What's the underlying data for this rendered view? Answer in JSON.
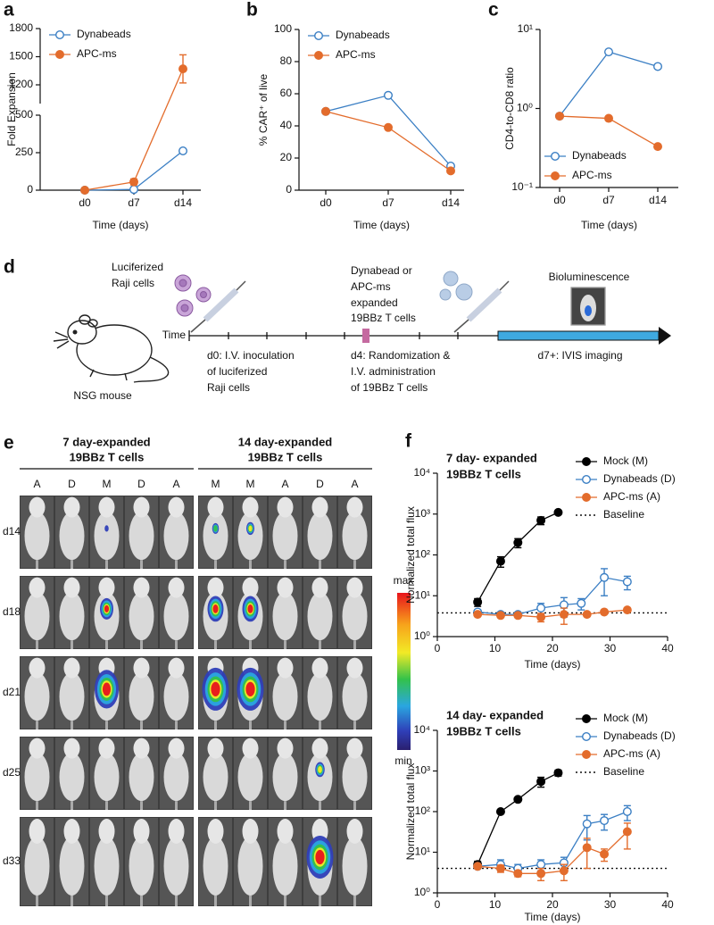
{
  "chart_data": [
    {
      "type": "line",
      "panel": "a",
      "xlabel": "Time (days)",
      "ylabel": "Fold Expansion",
      "categories": [
        "d0",
        "d7",
        "d14"
      ],
      "series": [
        {
          "name": "Dynabeads",
          "color": "#3b7fc4",
          "marker": "open",
          "values": [
            0,
            5,
            262
          ],
          "errors": [
            null,
            null,
            12
          ]
        },
        {
          "name": "APC-ms",
          "color": "#e36c2c",
          "marker": "filled",
          "values": [
            0,
            55,
            1370
          ],
          "errors": [
            null,
            20,
            150
          ]
        }
      ],
      "ylim": [
        0,
        1800
      ],
      "ybreak": [
        500,
        1000
      ],
      "yticks": [
        0,
        250,
        500,
        1200,
        1500,
        1800
      ],
      "legend": "upper left"
    },
    {
      "type": "line",
      "panel": "b",
      "xlabel": "Time (days)",
      "ylabel": "% CAR⁺ of live",
      "categories": [
        "d0",
        "d7",
        "d14"
      ],
      "series": [
        {
          "name": "Dynabeads",
          "color": "#3b7fc4",
          "marker": "open",
          "values": [
            49,
            59,
            15
          ]
        },
        {
          "name": "APC-ms",
          "color": "#e36c2c",
          "marker": "filled",
          "values": [
            49,
            39,
            12
          ]
        }
      ],
      "ylim": [
        0,
        100
      ],
      "yticks": [
        0,
        20,
        40,
        60,
        80,
        100
      ],
      "legend": "upper left"
    },
    {
      "type": "line",
      "panel": "c",
      "xlabel": "Time (days)",
      "ylabel": "CD4-to-CD8 ratio",
      "categories": [
        "d0",
        "d7",
        "d14"
      ],
      "series": [
        {
          "name": "Dynabeads",
          "color": "#3b7fc4",
          "marker": "open",
          "values": [
            0.8,
            5.2,
            3.4
          ]
        },
        {
          "name": "APC-ms",
          "color": "#e36c2c",
          "marker": "filled",
          "values": [
            0.8,
            0.75,
            0.33
          ]
        }
      ],
      "log_y": true,
      "ylim": [
        0.1,
        10
      ],
      "yticks": [
        {
          "value": 0.1,
          "label": "10⁻¹"
        },
        {
          "value": 1,
          "label": "10⁰"
        },
        {
          "value": 10,
          "label": "10¹"
        }
      ],
      "legend": "lower left"
    },
    {
      "type": "line",
      "panel": "f",
      "title": [
        "7 day- expanded",
        "19BBz T cells"
      ],
      "xlabel": "Time (days)",
      "ylabel": "Normalized total flux",
      "series": [
        {
          "name": "Mock (M)",
          "color": "#000000",
          "marker": "filled",
          "x": [
            7,
            11,
            14,
            18,
            21
          ],
          "values": [
            7,
            70,
            200,
            700,
            1100
          ],
          "errors": [
            1.5,
            20,
            50,
            150,
            100
          ]
        },
        {
          "name": "Dynabeads (D)",
          "color": "#3b7fc4",
          "marker": "open",
          "x": [
            7,
            11,
            14,
            18,
            22,
            25,
            29,
            33
          ],
          "values": [
            4,
            3.5,
            3.5,
            5,
            6,
            6.5,
            28,
            22
          ],
          "errors": [
            0.5,
            0.3,
            0.4,
            1.5,
            3,
            2,
            18,
            8
          ]
        },
        {
          "name": "APC-ms (A)",
          "color": "#e36c2c",
          "marker": "filled",
          "x": [
            7,
            11,
            14,
            18,
            22,
            26,
            29,
            33
          ],
          "values": [
            3.5,
            3.3,
            3.3,
            3,
            3.5,
            3.5,
            4,
            4.5
          ],
          "errors": [
            0.3,
            0.3,
            0.3,
            0.7,
            1.5,
            0.3,
            0.4,
            0.5
          ]
        }
      ],
      "hlines": [
        {
          "name": "Baseline",
          "value": 3.8,
          "style": "dotted"
        }
      ],
      "xlim": [
        0,
        40
      ],
      "xticks": [
        0,
        10,
        20,
        30,
        40
      ],
      "log_y": true,
      "ylim": [
        1,
        10000
      ],
      "yticks": [
        {
          "value": 1,
          "label": "10⁰"
        },
        {
          "value": 10,
          "label": "10¹"
        },
        {
          "value": 100,
          "label": "10²"
        },
        {
          "value": 1000,
          "label": "10³"
        },
        {
          "value": 10000,
          "label": "10⁴"
        }
      ],
      "legend": "upper right"
    },
    {
      "type": "line",
      "title": [
        "14 day- expanded",
        "19BBz T cells"
      ],
      "xlabel": "Time (days)",
      "ylabel": "Normalized total flux",
      "series": [
        {
          "name": "Mock (M)",
          "color": "#000000",
          "marker": "filled",
          "x": [
            7,
            11,
            14,
            18,
            21
          ],
          "values": [
            5,
            100,
            200,
            550,
            900
          ],
          "errors": [
            1,
            10,
            20,
            150,
            150
          ]
        },
        {
          "name": "Dynabeads (D)",
          "color": "#3b7fc4",
          "marker": "open",
          "x": [
            7,
            11,
            14,
            18,
            22,
            26,
            29,
            33
          ],
          "values": [
            4.5,
            5,
            4,
            5,
            5.5,
            50,
            60,
            100
          ],
          "errors": [
            0.5,
            1.5,
            1,
            1.5,
            2,
            30,
            25,
            40
          ]
        },
        {
          "name": "APC-ms (A)",
          "color": "#e36c2c",
          "marker": "filled",
          "x": [
            7,
            11,
            14,
            18,
            22,
            26,
            29,
            33
          ],
          "values": [
            4.5,
            4,
            3,
            3,
            3.5,
            13,
            9,
            32
          ],
          "errors": [
            0.5,
            0.8,
            0.5,
            1,
            1.5,
            9,
            3,
            20
          ]
        }
      ],
      "hlines": [
        {
          "name": "Baseline",
          "value": 4,
          "style": "dotted"
        }
      ],
      "xlim": [
        0,
        40
      ],
      "xticks": [
        0,
        10,
        20,
        30,
        40
      ],
      "log_y": true,
      "ylim": [
        1,
        10000
      ],
      "yticks": [
        {
          "value": 1,
          "label": "10⁰"
        },
        {
          "value": 10,
          "label": "10¹"
        },
        {
          "value": 100,
          "label": "10²"
        },
        {
          "value": 1000,
          "label": "10³"
        },
        {
          "value": 10000,
          "label": "10⁴"
        }
      ],
      "legend": "upper right"
    }
  ],
  "diagram": {
    "panel": "d",
    "cells_label": [
      "Luciferized",
      "Raji cells"
    ],
    "tcells_label": [
      "Dynabead or",
      "APC-ms",
      "expanded",
      "19BBz T cells"
    ],
    "imaging_label": "Bioluminescence",
    "time_label": "Time",
    "mouse_label": "NSG mouse",
    "step_d0": [
      "d0: I.V. inoculation",
      "of luciferized",
      "Raji cells"
    ],
    "step_d4": [
      "d4: Randomization &",
      "I.V. administration",
      "of 19BBz T cells"
    ],
    "step_d7": "d7+: IVIS imaging"
  },
  "imaging": {
    "panel": "e",
    "rows": [
      "d14",
      "d18",
      "d21",
      "d25",
      "d33"
    ],
    "groups": [
      {
        "header": [
          "7 day-expanded",
          "19BBz T cells"
        ],
        "columns": [
          "A",
          "D",
          "M",
          "D",
          "A"
        ]
      },
      {
        "header": [
          "14 day-expanded",
          "19BBz T cells"
        ],
        "columns": [
          "M",
          "M",
          "A",
          "D",
          "A"
        ]
      }
    ],
    "colorbar": {
      "max": "max",
      "min": "min"
    }
  }
}
